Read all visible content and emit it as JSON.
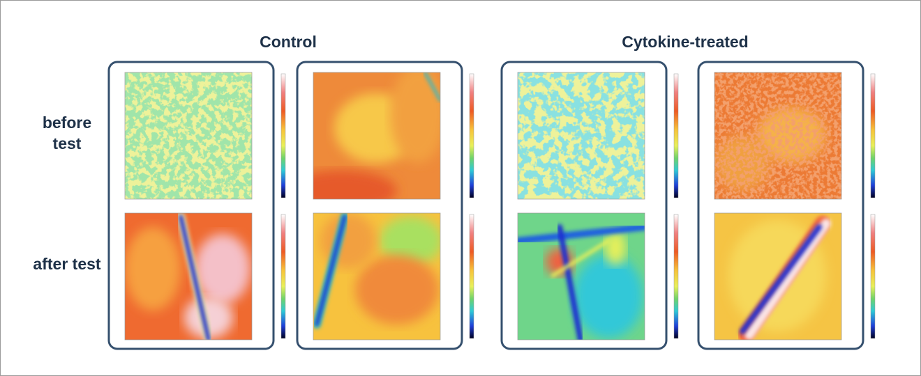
{
  "header": {
    "groups": [
      "Control",
      "Cytokine-treated"
    ]
  },
  "rows": [
    "before test",
    "after test"
  ]
}
